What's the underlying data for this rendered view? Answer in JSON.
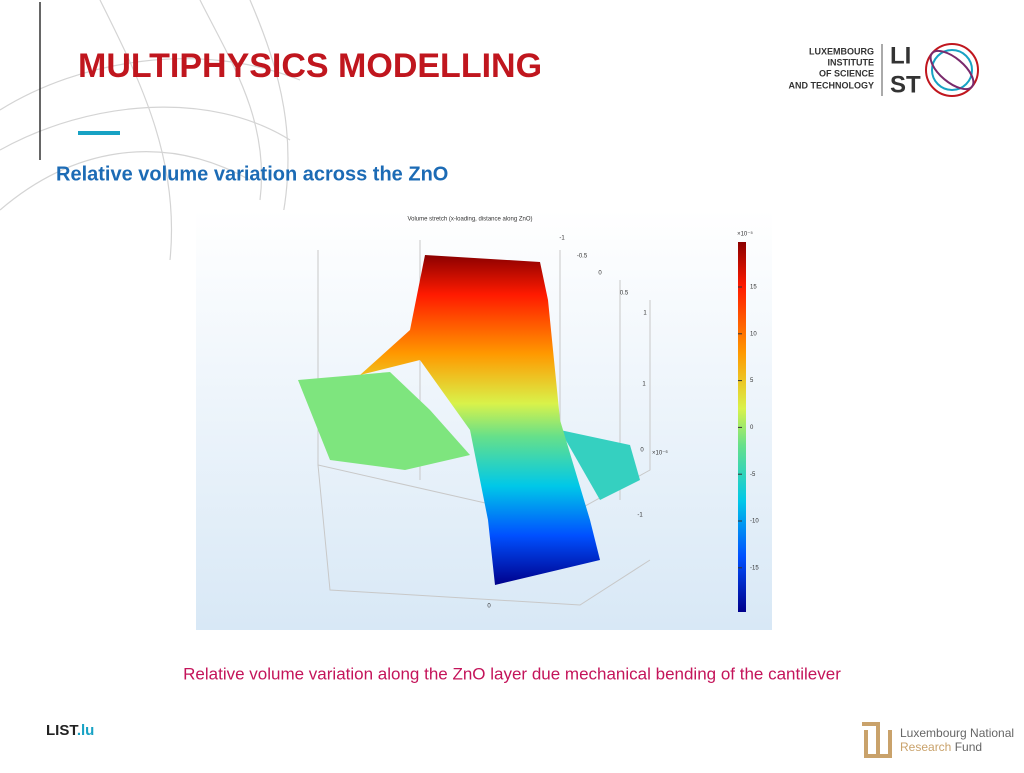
{
  "header": {
    "title": "MULTIPHYSICS MODELLING",
    "subtitle": "Relative volume variation across the ZnO"
  },
  "logo": {
    "lines": [
      "LUXEMBOURG",
      "INSTITUTE",
      "OF SCIENCE",
      "AND TECHNOLOGY"
    ],
    "mark_top": "LI",
    "mark_bottom": "ST"
  },
  "figure": {
    "title": "Volume stretch (x-loading, distance along ZnO)",
    "colorbar": {
      "exponent": "×10⁻⁵",
      "ticks": [
        15,
        10,
        5,
        0,
        -5,
        -10,
        -15
      ]
    },
    "axis_labels": [
      "-1",
      "-0.5",
      "0",
      "0.5",
      "1",
      "1",
      "0",
      "-1",
      "0"
    ],
    "axis_exponent": "×10⁻⁶"
  },
  "caption": "Relative volume variation along the ZnO layer due mechanical bending of the cantilever",
  "footer": {
    "site_main": "LIST",
    "site_suffix": ".lu",
    "fund_line1": "Luxembourg National",
    "fund_line2_a": "Research",
    "fund_line2_b": "Fund"
  }
}
